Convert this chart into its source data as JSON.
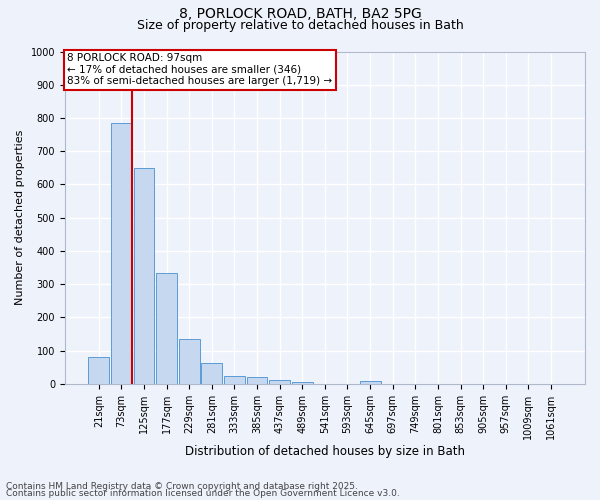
{
  "title1": "8, PORLOCK ROAD, BATH, BA2 5PG",
  "title2": "Size of property relative to detached houses in Bath",
  "xlabel": "Distribution of detached houses by size in Bath",
  "ylabel": "Number of detached properties",
  "categories": [
    "21sqm",
    "73sqm",
    "125sqm",
    "177sqm",
    "229sqm",
    "281sqm",
    "333sqm",
    "385sqm",
    "437sqm",
    "489sqm",
    "541sqm",
    "593sqm",
    "645sqm",
    "697sqm",
    "749sqm",
    "801sqm",
    "853sqm",
    "905sqm",
    "957sqm",
    "1009sqm",
    "1061sqm"
  ],
  "values": [
    82,
    785,
    650,
    335,
    135,
    63,
    25,
    20,
    12,
    7,
    0,
    0,
    9,
    0,
    0,
    0,
    0,
    0,
    0,
    0,
    0
  ],
  "bar_color": "#c5d8f0",
  "bar_edge_color": "#5b9bd5",
  "annotation_text": "8 PORLOCK ROAD: 97sqm\n← 17% of detached houses are smaller (346)\n83% of semi-detached houses are larger (1,719) →",
  "annotation_box_color": "#ffffff",
  "annotation_box_edge": "#cc0000",
  "red_line_color": "#cc0000",
  "ylim": [
    0,
    1000
  ],
  "yticks": [
    0,
    100,
    200,
    300,
    400,
    500,
    600,
    700,
    800,
    900,
    1000
  ],
  "footer1": "Contains HM Land Registry data © Crown copyright and database right 2025.",
  "footer2": "Contains public sector information licensed under the Open Government Licence v3.0.",
  "bg_color": "#eef2fb",
  "grid_color": "#ffffff",
  "title_fontsize": 10,
  "subtitle_fontsize": 9,
  "ylabel_fontsize": 8,
  "xlabel_fontsize": 8.5,
  "tick_fontsize": 7,
  "footer_fontsize": 6.5,
  "annot_fontsize": 7.5
}
